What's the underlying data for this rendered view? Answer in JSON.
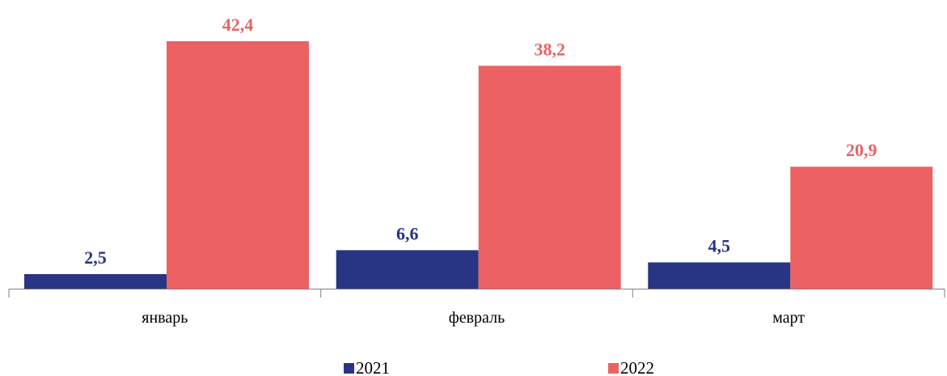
{
  "chart_data": {
    "type": "bar",
    "categories": [
      "январь",
      "февраль",
      "март"
    ],
    "series": [
      {
        "name": "2021",
        "values": [
          2.5,
          6.6,
          4.5
        ],
        "labels": [
          "2,5",
          "6,6",
          "4,5"
        ],
        "color": "#283484"
      },
      {
        "name": "2022",
        "values": [
          42.4,
          38.2,
          20.9
        ],
        "labels": [
          "42,4",
          "38,2",
          "20,9"
        ],
        "color": "#EC6163"
      }
    ],
    "title": "",
    "xlabel": "",
    "ylabel": "",
    "ylim": [
      0,
      42.4
    ],
    "grid": false,
    "legend": "bottom"
  }
}
